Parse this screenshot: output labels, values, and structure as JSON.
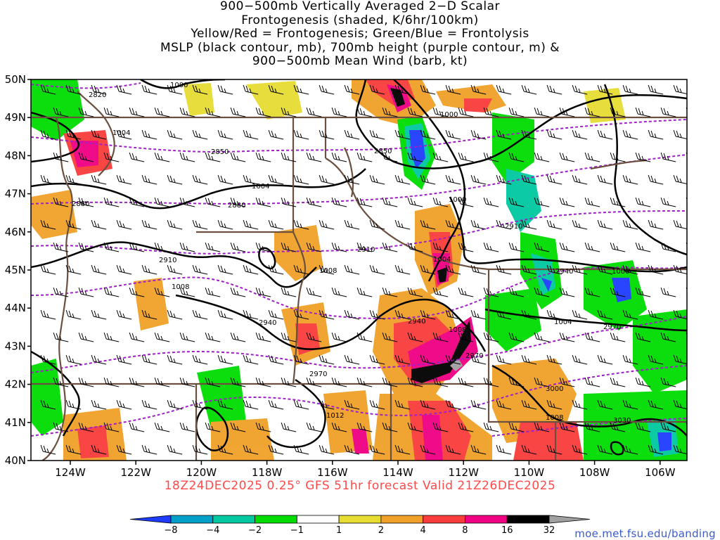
{
  "title_lines": [
    "900−500mb Vertically Averaged 2−D Scalar",
    "Frontogenesis (shaded, K/6hr/100km)",
    "Yellow/Red = Frontogenesis;  Green/Blue = Frontolysis",
    "MSLP (black contour, mb), 700mb height (purple contour, m) &",
    "900−500mb Mean Wind (barb, kt)"
  ],
  "valid_line": "18Z24DEC2025 0.25° GFS 51hr forecast Valid 21Z26DEC2025",
  "credit": "moe.met.fsu.edu/banding",
  "lat_labels": [
    "50N",
    "49N",
    "48N",
    "47N",
    "46N",
    "45N",
    "44N",
    "43N",
    "42N",
    "41N",
    "40N"
  ],
  "lon_labels": [
    "124W",
    "122W",
    "120W",
    "118W",
    "116W",
    "114W",
    "112W",
    "110W",
    "108W",
    "106W"
  ],
  "colorbar": {
    "labels": [
      "−8",
      "−4",
      "−2",
      "−1",
      "1",
      "2",
      "4",
      "8",
      "16",
      "32"
    ],
    "colors": [
      "#1e3cff",
      "#00a0c8",
      "#00c8a0",
      "#00dc00",
      "#ffffff",
      "#e6dc32",
      "#f0a028",
      "#fa3c3c",
      "#f00082",
      "#000000",
      "#a0a0a0"
    ]
  },
  "colors": {
    "mslp_contour": "#000000",
    "height_contour": "#a020c8",
    "state_borders": "#6b5040",
    "barb": "#000000"
  },
  "mslp_labels": [
    "1000",
    "1004",
    "1000",
    "1004",
    "1008",
    "1000",
    "1004",
    "1008",
    "1000",
    "1004",
    "1008",
    "1012",
    "1008"
  ],
  "height_labels": [
    "2820",
    "2850",
    "2850",
    "2880",
    "2880",
    "2910",
    "2910",
    "2910",
    "2940",
    "2940",
    "2940",
    "2970",
    "2970",
    "2970",
    "3000",
    "3030"
  ]
}
